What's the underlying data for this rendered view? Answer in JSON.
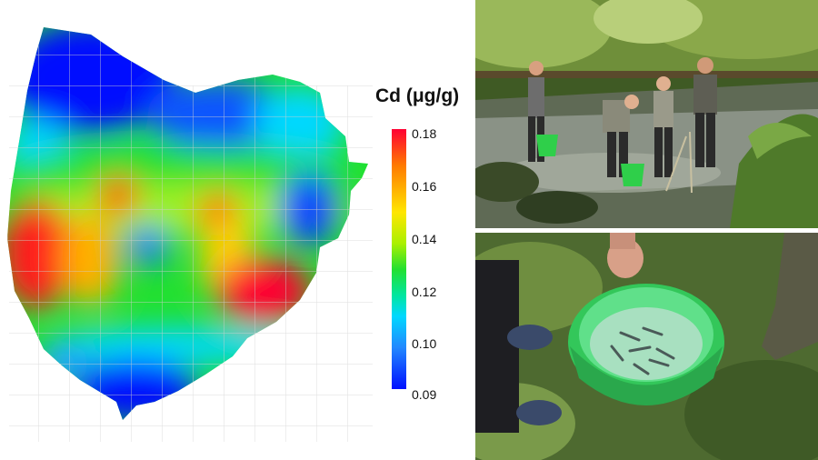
{
  "heatmap": {
    "variable": "Cd",
    "unit": "(μg/g)",
    "legend_title": "Cd (μg/g)",
    "legend_ticks": [
      "0.18",
      "0.16",
      "0.14",
      "0.12",
      "0.10",
      "0.09"
    ],
    "range": [
      0.09,
      0.18
    ],
    "colormap": [
      "#0010ff",
      "#00d8ff",
      "#22e030",
      "#ffe600",
      "#ff0033"
    ],
    "hotspots": [
      {
        "label": "west",
        "value": 0.176
      },
      {
        "label": "southeast",
        "value": 0.18
      },
      {
        "label": "center-north",
        "value": 0.165
      },
      {
        "label": "center-east",
        "value": 0.168
      }
    ],
    "coldspots": [
      {
        "label": "north",
        "value": 0.09
      },
      {
        "label": "south",
        "value": 0.09
      },
      {
        "label": "east",
        "value": 0.095
      },
      {
        "label": "center",
        "value": 0.1
      }
    ]
  },
  "photos": {
    "top_scene": "researchers-in-stream",
    "bottom_scene": "green-bucket-with-fish",
    "bucket_color": "#33c75a"
  }
}
